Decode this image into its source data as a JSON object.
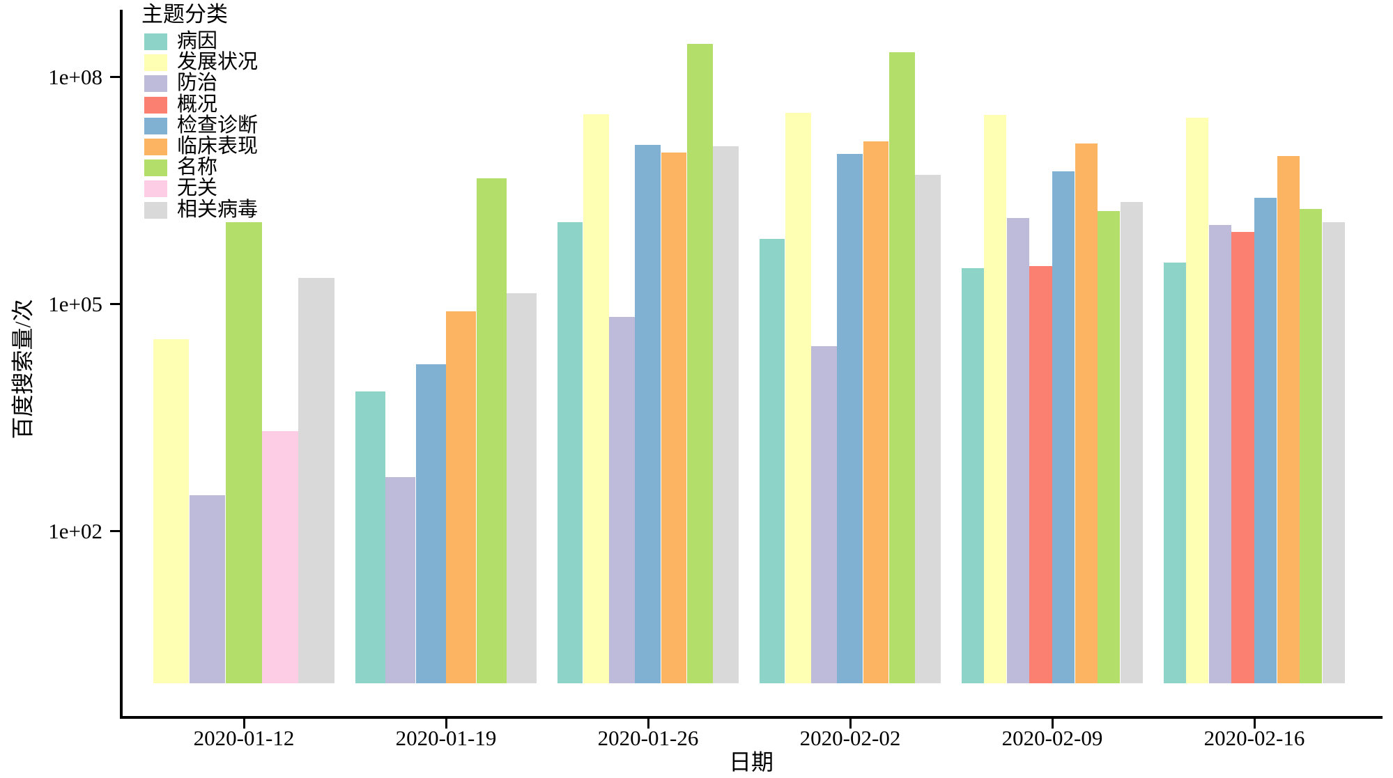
{
  "chart_data": {
    "type": "bar",
    "title": "",
    "xlabel": "日期",
    "ylabel": "百度搜索量/次",
    "legend_title": "主题分类",
    "legend_position": "top-left-inside",
    "yscale": "log",
    "grid": false,
    "axis_color": "#000000",
    "ylim": [
      1,
      500000000
    ],
    "yticks": [
      {
        "label": "1e+08",
        "value": 100000000
      },
      {
        "label": "1e+05",
        "value": 100000
      },
      {
        "label": "1e+02",
        "value": 100
      }
    ],
    "categories": [
      "2020-01-12",
      "2020-01-19",
      "2020-01-26",
      "2020-02-02",
      "2020-02-09",
      "2020-02-16"
    ],
    "series": [
      {
        "name": "病因",
        "color": "#8DD3C7",
        "values": [
          null,
          7000,
          1200000,
          720000,
          300000,
          350000
        ]
      },
      {
        "name": "发展状况",
        "color": "#FFFFB3",
        "values": [
          34000,
          null,
          32000000,
          33000000,
          31000000,
          29000000
        ]
      },
      {
        "name": "防治",
        "color": "#BEBADA",
        "values": [
          300,
          520,
          68000,
          28000,
          1350000,
          1100000
        ]
      },
      {
        "name": "概况",
        "color": "#FB8072",
        "values": [
          null,
          null,
          null,
          null,
          320000,
          900000
        ]
      },
      {
        "name": "检查诊断",
        "color": "#80B1D3",
        "values": [
          null,
          16000,
          12500000,
          9500000,
          5600000,
          2500000
        ]
      },
      {
        "name": "临床表现",
        "color": "#FDB462",
        "values": [
          null,
          80000,
          10000000,
          14000000,
          13000000,
          9000000
        ]
      },
      {
        "name": "名称",
        "color": "#B3DE69",
        "values": [
          1200000,
          4600000,
          270000000,
          210000000,
          1700000,
          1800000
        ]
      },
      {
        "name": "无关",
        "color": "#FCCDE5",
        "values": [
          2100,
          null,
          null,
          null,
          null,
          null
        ]
      },
      {
        "name": "相关病毒",
        "color": "#D9D9D9",
        "values": [
          220000,
          140000,
          12000000,
          5100000,
          2200000,
          1200000
        ]
      }
    ]
  }
}
